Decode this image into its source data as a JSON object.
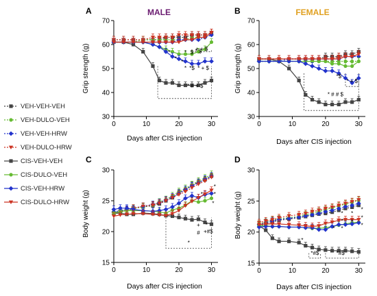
{
  "legend": [
    {
      "name": "VEH-VEH-VEH",
      "color": "#444444",
      "marker": "square",
      "dash": "2,2"
    },
    {
      "name": "VEH-DULO-VEH",
      "color": "#66bb33",
      "marker": "circle",
      "dash": "2,2"
    },
    {
      "name": "VEH-VEH-HRW",
      "color": "#2233cc",
      "marker": "diamond",
      "dash": "2,2"
    },
    {
      "name": "VEH-DULO-HRW",
      "color": "#cc3322",
      "marker": "triangle",
      "dash": "2,2"
    },
    {
      "name": "CIS-VEH-VEH",
      "color": "#444444",
      "marker": "square",
      "dash": ""
    },
    {
      "name": "CIS-DULO-VEH",
      "color": "#66bb33",
      "marker": "circle",
      "dash": ""
    },
    {
      "name": "CIS-VEH-HRW",
      "color": "#2233cc",
      "marker": "diamond",
      "dash": ""
    },
    {
      "name": "CIS-DULO-HRW",
      "color": "#cc3322",
      "marker": "triangle",
      "dash": ""
    }
  ],
  "chart_data": [
    {
      "type": "line",
      "panel": "A",
      "title": "MALE",
      "title_color": "#6a1b70",
      "xlabel": "Days after CIS injection",
      "ylabel": "Grip strength (g)",
      "xlim": [
        0,
        32
      ],
      "ylim": [
        30,
        70
      ],
      "xticks": [
        "0",
        "10",
        "20",
        "30"
      ],
      "yticks": [
        "30",
        "40",
        "50",
        "60",
        "70"
      ],
      "x": [
        0,
        3,
        6,
        9,
        12,
        14,
        16,
        18,
        20,
        22,
        24,
        26,
        28,
        30
      ],
      "series": [
        {
          "name": "VEH-VEH-VEH",
          "values": [
            62,
            62,
            62,
            62,
            62,
            62,
            63,
            63,
            63,
            63,
            64,
            64,
            64,
            65
          ]
        },
        {
          "name": "VEH-DULO-VEH",
          "values": [
            61,
            61,
            61,
            62,
            62,
            62,
            62,
            62,
            62,
            62,
            63,
            63,
            63,
            64
          ]
        },
        {
          "name": "VEH-VEH-HRW",
          "values": [
            61,
            61,
            61,
            61,
            61,
            61,
            61,
            61,
            62,
            62,
            62,
            62,
            63,
            64
          ]
        },
        {
          "name": "VEH-DULO-HRW",
          "values": [
            62,
            62,
            62,
            62,
            63,
            63,
            63,
            63,
            64,
            64,
            64,
            64,
            64,
            65
          ]
        },
        {
          "name": "CIS-VEH-VEH",
          "values": [
            61,
            61,
            60,
            57,
            51,
            45,
            44,
            44,
            43,
            43,
            43,
            43,
            44,
            45
          ]
        },
        {
          "name": "CIS-DULO-VEH",
          "values": [
            61,
            61,
            61,
            61,
            60,
            59,
            58,
            57,
            56,
            56,
            56,
            57,
            58,
            61
          ]
        },
        {
          "name": "CIS-VEH-HRW",
          "values": [
            61,
            61,
            61,
            61,
            60,
            59,
            57,
            55,
            54,
            53,
            52,
            52,
            53,
            53
          ]
        },
        {
          "name": "CIS-DULO-HRW",
          "values": [
            61,
            61,
            61,
            61,
            61,
            61,
            61,
            61,
            61,
            62,
            62,
            63,
            63,
            65
          ]
        }
      ],
      "annotations": [
        {
          "text": "*",
          "x": 17,
          "y": 56
        },
        {
          "text": "*",
          "x": 19,
          "y": 53.5
        },
        {
          "text": "*",
          "x": 21,
          "y": 52
        },
        {
          "text": "*",
          "x": 22,
          "y": 56
        },
        {
          "text": "$",
          "x": 24,
          "y": 56
        },
        {
          "text": "* $",
          "x": 26,
          "y": 56.5
        },
        {
          "text": "*",
          "x": 22,
          "y": 49.5
        },
        {
          "text": "*$",
          "x": 24,
          "y": 49.5
        },
        {
          "text": "* + $",
          "x": 27.5,
          "y": 49.5
        },
        {
          "text": "* # + $",
          "x": 25,
          "y": 42
        },
        {
          "text": "+ + $",
          "x": 27,
          "y": 57.5
        }
      ],
      "brackets": [
        {
          "x0": 13.5,
          "x1": 30,
          "y_line": 37.5,
          "y_up": 51
        },
        {
          "x0": 24,
          "x1": 30,
          "y_line": 57,
          "y_up": 58
        }
      ]
    },
    {
      "type": "line",
      "panel": "B",
      "title": "FEMALE",
      "title_color": "#e0a020",
      "xlabel": "Days after CIS injection",
      "ylabel": "Grip strength (g)",
      "xlim": [
        0,
        32
      ],
      "ylim": [
        30,
        70
      ],
      "xticks": [
        "0",
        "10",
        "20",
        "30"
      ],
      "yticks": [
        "30",
        "40",
        "50",
        "60",
        "70"
      ],
      "x": [
        0,
        3,
        6,
        9,
        12,
        14,
        16,
        18,
        20,
        22,
        24,
        26,
        28,
        30
      ],
      "series": [
        {
          "name": "VEH-VEH-VEH",
          "values": [
            54,
            54,
            54,
            54,
            54,
            54,
            54,
            54,
            55,
            55,
            55,
            56,
            56,
            57
          ]
        },
        {
          "name": "VEH-DULO-VEH",
          "values": [
            53,
            53,
            53,
            53,
            53,
            53,
            53,
            53,
            53,
            53,
            53,
            53,
            53,
            53
          ]
        },
        {
          "name": "VEH-VEH-HRW",
          "values": [
            53,
            53,
            53,
            54,
            54,
            54,
            54,
            54,
            54,
            54,
            54,
            55,
            55,
            55
          ]
        },
        {
          "name": "VEH-DULO-HRW",
          "values": [
            54,
            54,
            54,
            54,
            54,
            54,
            54,
            54,
            54,
            54,
            55,
            55,
            55,
            56
          ]
        },
        {
          "name": "CIS-VEH-VEH",
          "values": [
            54,
            54,
            53,
            50,
            45,
            39,
            37,
            36,
            35,
            35,
            35,
            36,
            36,
            37
          ]
        },
        {
          "name": "CIS-DULO-VEH",
          "values": [
            53,
            53,
            53,
            53,
            53,
            53,
            53,
            53,
            53,
            52,
            52,
            51,
            51,
            53
          ]
        },
        {
          "name": "CIS-VEH-HRW",
          "values": [
            53,
            53,
            53,
            53,
            53,
            52,
            51,
            50,
            49,
            49,
            48,
            46,
            44,
            46
          ]
        },
        {
          "name": "CIS-DULO-HRW",
          "values": [
            54,
            54,
            54,
            54,
            54,
            54,
            54,
            54,
            54,
            54,
            54,
            55,
            55,
            56
          ]
        }
      ],
      "annotations": [
        {
          "text": "*$",
          "x": 24,
          "y": 46
        },
        {
          "text": "* + $",
          "x": 28,
          "y": 44
        },
        {
          "text": "* # # $",
          "x": 23,
          "y": 38.5
        }
      ],
      "brackets": [
        {
          "x0": 13.5,
          "x1": 30,
          "y_line": 32.5,
          "y_up": 48
        },
        {
          "x0": 26,
          "x1": 30,
          "y_line": 42.5,
          "y_up": 48
        }
      ]
    },
    {
      "type": "line",
      "panel": "C",
      "title": "",
      "xlabel": "Days after CIS injection",
      "ylabel": "Body weight (g)",
      "xlim": [
        0,
        32
      ],
      "ylim": [
        15,
        30
      ],
      "xticks": [
        "0",
        "10",
        "20",
        "30"
      ],
      "yticks": [
        "15",
        "20",
        "25",
        "30"
      ],
      "x": [
        0,
        2,
        4,
        6,
        9,
        12,
        14,
        16,
        18,
        20,
        22,
        24,
        26,
        28,
        30
      ],
      "series": [
        {
          "name": "VEH-VEH-VEH",
          "values": [
            23,
            23.3,
            23.6,
            23.8,
            24,
            24.2,
            24.5,
            25,
            25.5,
            26.3,
            26.8,
            27.5,
            28,
            28.4,
            29
          ]
        },
        {
          "name": "VEH-DULO-VEH",
          "values": [
            22.8,
            23.1,
            23.4,
            23.7,
            24,
            24.3,
            24.8,
            25.2,
            25.8,
            26.5,
            27,
            27.6,
            28.2,
            28.7,
            29.3
          ]
        },
        {
          "name": "VEH-VEH-HRW",
          "values": [
            23.2,
            23.4,
            23.6,
            23.8,
            24.1,
            24.4,
            24.7,
            25.1,
            25.6,
            26.2,
            26.8,
            27.4,
            27.9,
            28.5,
            29
          ]
        },
        {
          "name": "VEH-DULO-HRW",
          "values": [
            22.9,
            23.2,
            23.5,
            23.8,
            24.1,
            24.3,
            24.6,
            25,
            25.5,
            26,
            26.5,
            27.1,
            27.7,
            28.2,
            28.8
          ]
        },
        {
          "name": "CIS-VEH-VEH",
          "values": [
            23,
            23,
            22.8,
            22.8,
            23,
            22.9,
            22.8,
            22.6,
            22.5,
            22.3,
            22.1,
            21.9,
            22,
            21.5,
            21.2
          ]
        },
        {
          "name": "CIS-DULO-VEH",
          "values": [
            23,
            23.3,
            23.4,
            23.4,
            23.4,
            23.3,
            23.2,
            23,
            23.5,
            23.8,
            24.3,
            25,
            24.8,
            25,
            25.4
          ]
        },
        {
          "name": "CIS-VEH-HRW",
          "values": [
            23.6,
            23.8,
            23.8,
            23.6,
            23.4,
            23.3,
            23.4,
            23.6,
            24,
            24.6,
            25.4,
            25.8,
            25.5,
            26,
            26.2
          ]
        },
        {
          "name": "CIS-DULO-HRW",
          "values": [
            22.5,
            22.7,
            22.8,
            22.9,
            22.9,
            22.8,
            22.7,
            22.6,
            22.9,
            23.4,
            24.2,
            24.9,
            25.5,
            26.1,
            26.7
          ]
        }
      ],
      "annotations": [
        {
          "text": "*",
          "x": 27,
          "y": 25.8
        },
        {
          "text": "*",
          "x": 31,
          "y": 27
        },
        {
          "text": "*",
          "x": 31,
          "y": 25.8
        },
        {
          "text": "*",
          "x": 30.5,
          "y": 24.3
        },
        {
          "text": "+",
          "x": 26,
          "y": 20.8
        },
        {
          "text": "#",
          "x": 26,
          "y": 19.5
        },
        {
          "text": "*",
          "x": 28.5,
          "y": 20.8
        },
        {
          "text": "+#$",
          "x": 29,
          "y": 19.7
        },
        {
          "text": "*",
          "x": 23,
          "y": 17.9
        }
      ],
      "brackets": [
        {
          "x0": 16,
          "x1": 30,
          "y_line": 17.3,
          "y_up": 22.3
        }
      ]
    },
    {
      "type": "line",
      "panel": "D",
      "title": "",
      "xlabel": "Days after CIS injection",
      "ylabel": "Body weight (g)",
      "xlim": [
        0,
        32
      ],
      "ylim": [
        15,
        30
      ],
      "xticks": [
        "0",
        "10",
        "20",
        "30"
      ],
      "yticks": [
        "15",
        "20",
        "25",
        "30"
      ],
      "x": [
        0,
        2,
        4,
        6,
        9,
        12,
        14,
        16,
        18,
        20,
        22,
        24,
        26,
        28,
        30
      ],
      "series": [
        {
          "name": "VEH-VEH-VEH",
          "values": [
            21,
            21.3,
            21.6,
            21.9,
            22.1,
            22.3,
            22.5,
            22.7,
            22.9,
            23,
            23.2,
            23.5,
            23.8,
            24,
            24.3
          ]
        },
        {
          "name": "VEH-DULO-VEH",
          "values": [
            21.3,
            21.6,
            21.9,
            22.1,
            22.3,
            22.5,
            22.8,
            23,
            23.3,
            23.6,
            23.9,
            24.2,
            24.5,
            24.8,
            25.1
          ]
        },
        {
          "name": "VEH-VEH-HRW",
          "values": [
            21.2,
            21.5,
            21.8,
            22,
            22.2,
            22.4,
            22.6,
            22.8,
            23,
            23.3,
            23.5,
            23.8,
            24.1,
            24.3,
            24.6
          ]
        },
        {
          "name": "VEH-DULO-HRW",
          "values": [
            21.5,
            21.8,
            22,
            22.3,
            22.6,
            22.8,
            23,
            23.3,
            23.5,
            23.8,
            24,
            24.3,
            24.6,
            24.9,
            25.2
          ]
        },
        {
          "name": "CIS-VEH-VEH",
          "values": [
            21,
            20.3,
            19,
            18.5,
            18.5,
            18.3,
            17.8,
            17.5,
            17.2,
            17.1,
            17,
            17,
            17,
            16.9,
            16.8
          ]
        },
        {
          "name": "CIS-DULO-VEH",
          "values": [
            21,
            21,
            20.9,
            20.9,
            20.8,
            20.8,
            20.7,
            20.6,
            20.6,
            20.7,
            20.9,
            21.1,
            21.3,
            21.5,
            21.6
          ]
        },
        {
          "name": "CIS-VEH-HRW",
          "values": [
            20.8,
            20.9,
            20.9,
            20.9,
            20.8,
            20.8,
            20.7,
            20.7,
            20.4,
            20.4,
            20.9,
            21.2,
            21.2,
            21.3,
            21.5
          ]
        },
        {
          "name": "CIS-DULO-HRW",
          "values": [
            21.2,
            21.3,
            21.3,
            21.3,
            21.2,
            21.1,
            21,
            20.9,
            21,
            21.4,
            21.6,
            21.9,
            22,
            22,
            22
          ]
        }
      ],
      "annotations": [
        {
          "text": "*",
          "x": 25,
          "y": 22.7
        },
        {
          "text": "*",
          "x": 28,
          "y": 22.7
        },
        {
          "text": "*",
          "x": 31,
          "y": 23.3
        },
        {
          "text": "*",
          "x": 31,
          "y": 22
        },
        {
          "text": "*",
          "x": 31,
          "y": 20.8
        },
        {
          "text": "*",
          "x": 25,
          "y": 21.5
        },
        {
          "text": "*",
          "x": 28,
          "y": 21.4
        },
        {
          "text": "*",
          "x": 25,
          "y": 20.3
        },
        {
          "text": "*",
          "x": 22.5,
          "y": 20.3
        },
        {
          "text": "*",
          "x": 13,
          "y": 18.4
        },
        {
          "text": "*#$",
          "x": 16.8,
          "y": 16.3
        },
        {
          "text": "*#$",
          "x": 24.5,
          "y": 16.3
        }
      ],
      "brackets": [
        {
          "x0": 15,
          "x1": 18.5,
          "y_line": 15.8,
          "y_up": 16.6
        },
        {
          "x0": 20,
          "x1": 30,
          "y_line": 15.8,
          "y_up": 16.6
        }
      ]
    }
  ]
}
